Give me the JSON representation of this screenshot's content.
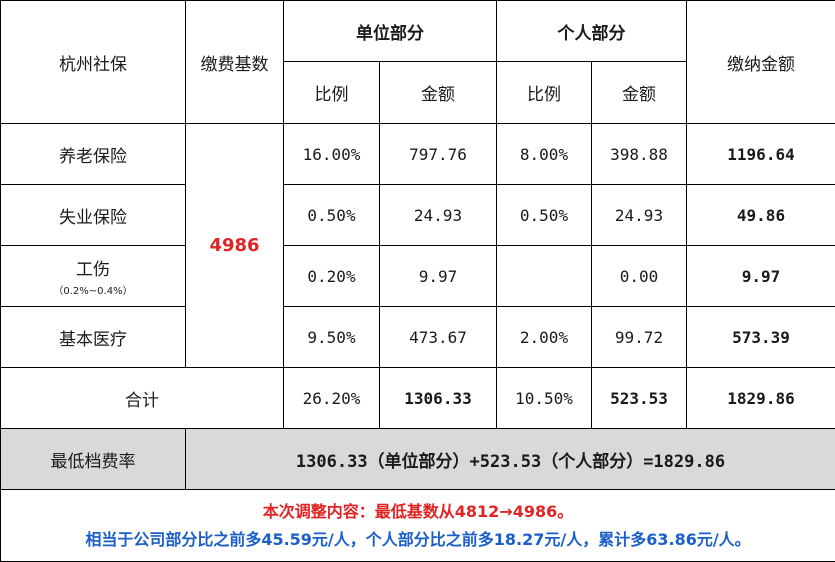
{
  "header": {
    "region": "杭州社保",
    "base_label": "缴费基数",
    "employer_part": "单位部分",
    "personal_part": "个人部分",
    "total_amount": "缴纳金额",
    "ratio": "比例",
    "amount": "金额"
  },
  "base_value": "4986",
  "rows": [
    {
      "name": "养老保险",
      "sub": "",
      "emp_ratio": "16.00%",
      "emp_amt": "797.76",
      "per_ratio": "8.00%",
      "per_amt": "398.88",
      "total": "1196.64"
    },
    {
      "name": "失业保险",
      "sub": "",
      "emp_ratio": "0.50%",
      "emp_amt": "24.93",
      "per_ratio": "0.50%",
      "per_amt": "24.93",
      "total": "49.86"
    },
    {
      "name": "工伤",
      "sub": "（0.2%~0.4%）",
      "emp_ratio": "0.20%",
      "emp_amt": "9.97",
      "per_ratio": "",
      "per_amt": "0.00",
      "total": "9.97"
    },
    {
      "name": "基本医疗",
      "sub": "",
      "emp_ratio": "9.50%",
      "emp_amt": "473.67",
      "per_ratio": "2.00%",
      "per_amt": "99.72",
      "total": "573.39"
    }
  ],
  "sum": {
    "label": "合计",
    "emp_ratio": "26.20%",
    "emp_amt": "1306.33",
    "per_ratio": "10.50%",
    "per_amt": "523.53",
    "total": "1829.86"
  },
  "min_rate": {
    "label": "最低档费率",
    "formula": "1306.33（单位部分）+523.53（个人部分）=1829.86"
  },
  "notes": {
    "line1": "本次调整内容：最低基数从4812→4986。",
    "line2": "相当于公司部分比之前多45.59元/人，个人部分比之前多18.27元/人，累计多63.86元/人。"
  },
  "colors": {
    "highlight_red": "#e02424",
    "note_blue": "#1a5fc9",
    "gray_row": "#d9d9d9"
  }
}
